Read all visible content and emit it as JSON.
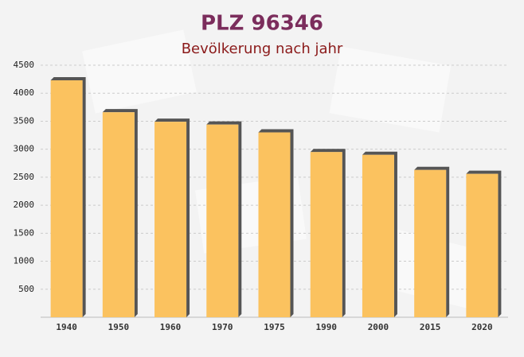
{
  "chart_data": {
    "type": "bar",
    "title": "PLZ 96346",
    "subtitle": "Bevölkerung nach jahr",
    "categories": [
      "1940",
      "1950",
      "1960",
      "1970",
      "1975",
      "1990",
      "2000",
      "2015",
      "2020"
    ],
    "values": [
      4230,
      3660,
      3490,
      3440,
      3300,
      2950,
      2900,
      2630,
      2560
    ],
    "color": "#fbc25f",
    "shadow_color": "#555555",
    "ylim": [
      0,
      4500
    ],
    "yticks": [
      500,
      1000,
      1500,
      2000,
      2500,
      3000,
      3500,
      4000,
      4500
    ],
    "grid": true
  }
}
